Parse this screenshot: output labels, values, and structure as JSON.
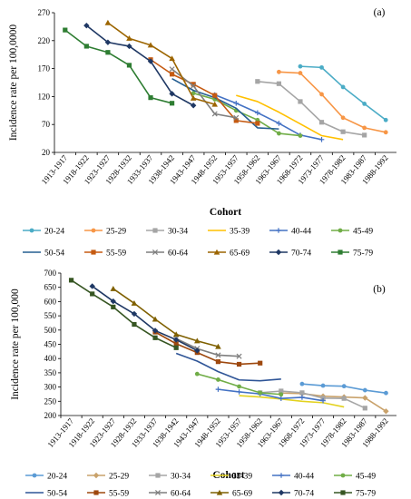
{
  "chart_data": [
    {
      "type": "line",
      "panel_label": "(a)",
      "xlabel": "Cohort",
      "ylabel": "Incidence rate per 100,0000",
      "ylim": [
        20,
        270
      ],
      "yticks": [
        20,
        70,
        120,
        170,
        220,
        270
      ],
      "grid": false,
      "categories": [
        "1913-1917",
        "1918-1922",
        "1923-1927",
        "1928-1932",
        "1933-1937",
        "1938-1942",
        "1943-1947",
        "1948-1952",
        "1953-1957",
        "1958-1962",
        "1963-1967",
        "1968-1972",
        "1973-1977",
        "1978-1982",
        "1983-1987",
        "1988-1992"
      ],
      "series": [
        {
          "name": "20-24",
          "color": "#4BACC6",
          "marker": "circle",
          "values": [
            null,
            null,
            null,
            null,
            null,
            null,
            null,
            null,
            null,
            null,
            null,
            174,
            172,
            137,
            107,
            78
          ]
        },
        {
          "name": "25-29",
          "color": "#F79646",
          "marker": "circle",
          "values": [
            null,
            null,
            null,
            null,
            null,
            null,
            null,
            null,
            null,
            null,
            164,
            162,
            124,
            82,
            64,
            56
          ]
        },
        {
          "name": "30-34",
          "color": "#A5A5A5",
          "marker": "square",
          "values": [
            null,
            null,
            null,
            null,
            null,
            null,
            null,
            null,
            null,
            147,
            143,
            111,
            74,
            57,
            51,
            null
          ]
        },
        {
          "name": "35-39",
          "color": "#FFC000",
          "marker": "none",
          "values": [
            null,
            null,
            null,
            null,
            null,
            null,
            null,
            null,
            122,
            111,
            92,
            71,
            50,
            43,
            null,
            null
          ]
        },
        {
          "name": "40-44",
          "color": "#4472C4",
          "marker": "plus",
          "values": [
            null,
            null,
            null,
            null,
            null,
            null,
            null,
            123,
            108,
            91,
            72,
            51,
            43,
            null,
            null,
            null
          ]
        },
        {
          "name": "45-49",
          "color": "#70AD47",
          "marker": "circle",
          "values": [
            null,
            null,
            null,
            null,
            null,
            null,
            126,
            115,
            95,
            78,
            54,
            50,
            null,
            null,
            null,
            null
          ]
        },
        {
          "name": "50-54",
          "color": "#255E91",
          "marker": "none",
          "values": [
            null,
            null,
            null,
            null,
            null,
            152,
            131,
            118,
            99,
            64,
            62,
            null,
            null,
            null,
            null,
            null
          ]
        },
        {
          "name": "55-59",
          "color": "#C55A11",
          "marker": "square",
          "values": [
            null,
            null,
            null,
            null,
            186,
            160,
            142,
            122,
            77,
            72,
            null,
            null,
            null,
            null,
            null,
            null
          ]
        },
        {
          "name": "60-64",
          "color": "#7F7F7F",
          "marker": "x",
          "values": [
            null,
            null,
            null,
            null,
            null,
            169,
            139,
            89,
            82,
            null,
            null,
            null,
            null,
            null,
            null,
            null
          ]
        },
        {
          "name": "65-69",
          "color": "#9C6500",
          "marker": "triangle",
          "values": [
            null,
            null,
            252,
            224,
            212,
            188,
            117,
            106,
            null,
            null,
            null,
            null,
            null,
            null,
            null,
            null
          ]
        },
        {
          "name": "70-74",
          "color": "#1F3864",
          "marker": "diamond",
          "values": [
            null,
            247,
            217,
            210,
            183,
            125,
            104,
            null,
            null,
            null,
            null,
            null,
            null,
            null,
            null,
            null
          ]
        },
        {
          "name": "75-79",
          "color": "#2E7D32",
          "marker": "square",
          "values": [
            239,
            210,
            199,
            176,
            118,
            108,
            null,
            null,
            null,
            null,
            null,
            null,
            null,
            null,
            null,
            null
          ]
        }
      ]
    },
    {
      "type": "line",
      "panel_label": "(b)",
      "xlabel": "Cohort",
      "ylabel": "Incidence rate per 100,000",
      "ylim": [
        200,
        700
      ],
      "yticks": [
        200,
        250,
        300,
        350,
        400,
        450,
        500,
        550,
        600,
        650,
        700
      ],
      "grid": false,
      "categories": [
        "1913-1917",
        "1918-1922",
        "1923-1927",
        "1928-1932",
        "1933-1937",
        "1938-1942",
        "1943-1947",
        "1948-1952",
        "1953-1957",
        "1958-1962",
        "1963-1967",
        "1968-1972",
        "1973-1977",
        "1978-1982",
        "1983-1987",
        "1988-1992"
      ],
      "series": [
        {
          "name": "20-24",
          "color": "#5B9BD5",
          "marker": "circle",
          "values": [
            null,
            null,
            null,
            null,
            null,
            null,
            null,
            null,
            null,
            null,
            null,
            311,
            305,
            303,
            289,
            279
          ]
        },
        {
          "name": "25-29",
          "color": "#C9A26B",
          "marker": "diamond",
          "values": [
            null,
            null,
            null,
            null,
            null,
            null,
            null,
            null,
            null,
            null,
            279,
            277,
            268,
            265,
            262,
            215
          ]
        },
        {
          "name": "30-34",
          "color": "#A5A5A5",
          "marker": "square",
          "values": [
            null,
            null,
            null,
            null,
            null,
            null,
            null,
            null,
            null,
            280,
            286,
            280,
            261,
            260,
            226,
            null
          ]
        },
        {
          "name": "35-39",
          "color": "#E3D21F",
          "marker": "none",
          "values": [
            null,
            null,
            null,
            null,
            null,
            null,
            null,
            null,
            270,
            265,
            258,
            250,
            245,
            230,
            null,
            null
          ]
        },
        {
          "name": "40-44",
          "color": "#4472C4",
          "marker": "plus",
          "values": [
            null,
            null,
            null,
            null,
            null,
            null,
            null,
            292,
            283,
            276,
            260,
            264,
            252,
            null,
            null,
            null
          ]
        },
        {
          "name": "45-49",
          "color": "#70AD47",
          "marker": "circle",
          "values": [
            null,
            null,
            null,
            null,
            null,
            null,
            346,
            326,
            302,
            280,
            274,
            null,
            null,
            null,
            null,
            null
          ]
        },
        {
          "name": "50-54",
          "color": "#2F5597",
          "marker": "none",
          "values": [
            null,
            null,
            null,
            null,
            null,
            418,
            391,
            354,
            325,
            322,
            328,
            null,
            null,
            null,
            null,
            null
          ]
        },
        {
          "name": "55-59",
          "color": "#9E480E",
          "marker": "square",
          "values": [
            null,
            null,
            null,
            null,
            493,
            452,
            421,
            389,
            380,
            384,
            null,
            null,
            null,
            null,
            null,
            null
          ]
        },
        {
          "name": "60-64",
          "color": "#7F7F7F",
          "marker": "x",
          "values": [
            null,
            null,
            null,
            null,
            null,
            470,
            435,
            412,
            408,
            null,
            null,
            null,
            null,
            null,
            null,
            null
          ]
        },
        {
          "name": "65-69",
          "color": "#7F6000",
          "marker": "triangle",
          "values": [
            null,
            null,
            645,
            594,
            538,
            485,
            462,
            442,
            null,
            null,
            null,
            null,
            null,
            null,
            null,
            null
          ]
        },
        {
          "name": "70-74",
          "color": "#1F3864",
          "marker": "diamond",
          "values": [
            null,
            654,
            601,
            557,
            498,
            466,
            428,
            null,
            null,
            null,
            null,
            null,
            null,
            null,
            null,
            null
          ]
        },
        {
          "name": "75-79",
          "color": "#375623",
          "marker": "square",
          "values": [
            675,
            627,
            581,
            520,
            473,
            438,
            null,
            null,
            null,
            null,
            null,
            null,
            null,
            null,
            null,
            null
          ]
        }
      ]
    }
  ]
}
